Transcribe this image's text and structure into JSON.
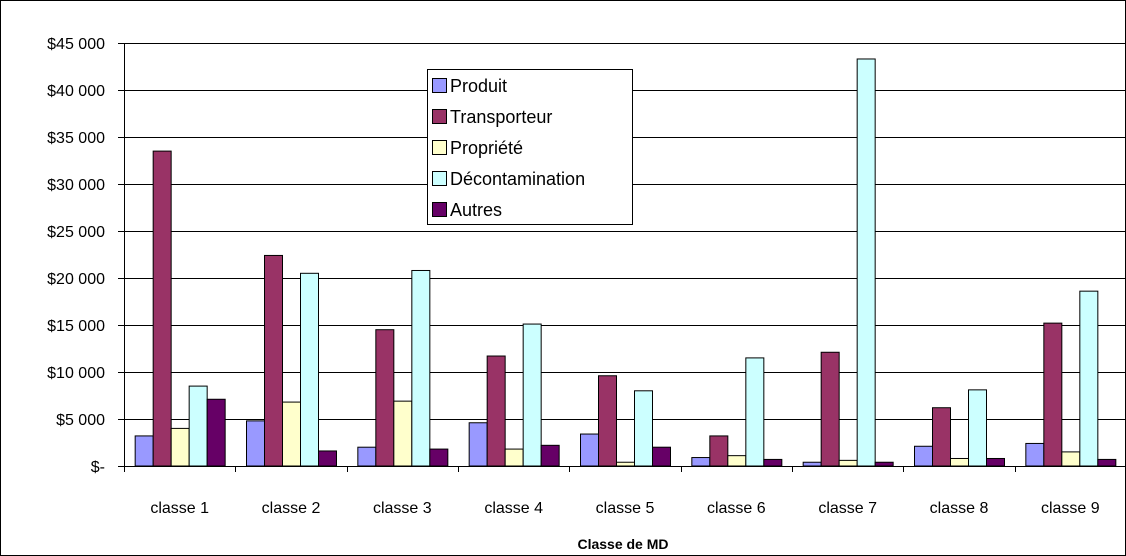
{
  "chart_data": {
    "type": "bar",
    "title": "",
    "xlabel": "Classe de MD",
    "ylabel": "",
    "ylim": [
      0,
      45000
    ],
    "y_ticks": [
      0,
      5000,
      10000,
      15000,
      20000,
      25000,
      30000,
      35000,
      40000,
      45000
    ],
    "y_tick_labels": [
      "$-",
      "$5 000",
      "$10 000",
      "$15 000",
      "$20 000",
      "$25 000",
      "$30 000",
      "$35 000",
      "$40 000",
      "$45 000"
    ],
    "grid": "horizontal",
    "legend_position": "top-center",
    "categories": [
      "classe 1",
      "classe 2",
      "classe 3",
      "classe 4",
      "classe 5",
      "classe 6",
      "classe 7",
      "classe 8",
      "classe 9"
    ],
    "series": [
      {
        "name": "Produit",
        "color": "#9999FF",
        "values": [
          3200,
          4800,
          2000,
          4600,
          3400,
          900,
          400,
          2100,
          2400
        ]
      },
      {
        "name": "Transporteur",
        "color": "#993366",
        "values": [
          33500,
          22400,
          14500,
          11700,
          9600,
          3200,
          12100,
          6200,
          15200
        ]
      },
      {
        "name": "Propriété",
        "color": "#FFFFCC",
        "values": [
          4000,
          6800,
          6900,
          1800,
          400,
          1100,
          600,
          800,
          1500
        ]
      },
      {
        "name": "Décontamination",
        "color": "#CCFFFF",
        "values": [
          8500,
          20500,
          20800,
          15100,
          8000,
          11500,
          43300,
          8100,
          18600
        ]
      },
      {
        "name": "Autres",
        "color": "#660066",
        "values": [
          7100,
          1600,
          1800,
          2200,
          2000,
          700,
          400,
          800,
          700
        ]
      }
    ]
  }
}
